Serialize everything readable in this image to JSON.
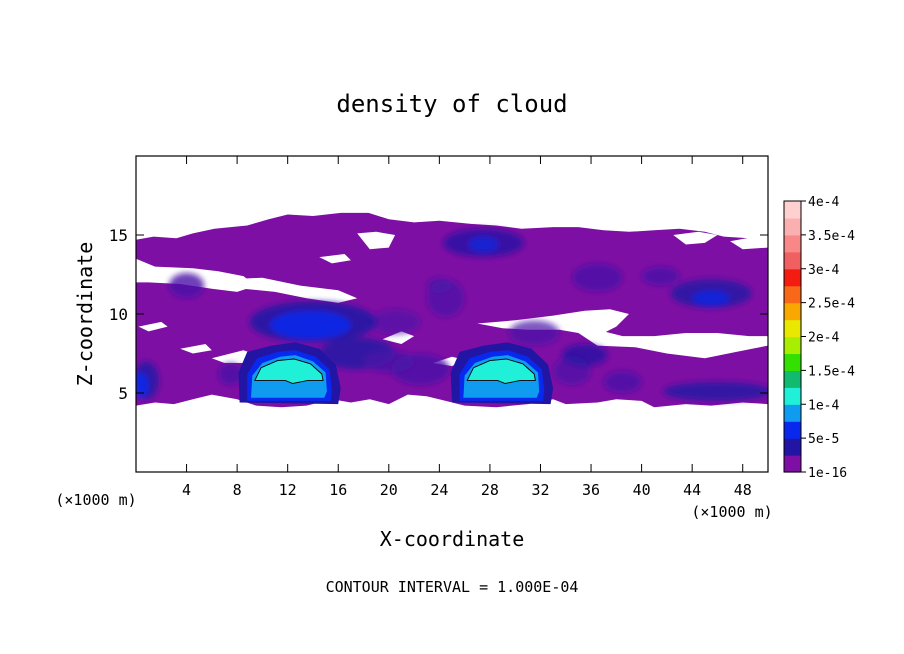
{
  "chart_data": {
    "type": "heatmap",
    "title": "density of cloud",
    "xlabel": "X-coordinate",
    "ylabel": "Z-coordinate",
    "x_unit_left": "(×1000 m)",
    "x_unit_right": "(×1000 m)",
    "xlim": [
      0,
      50
    ],
    "ylim": [
      0,
      20
    ],
    "x_ticks": [
      4,
      8,
      12,
      16,
      20,
      24,
      28,
      32,
      36,
      40,
      44,
      48
    ],
    "y_ticks": [
      5,
      10,
      15
    ],
    "footer": "CONTOUR INTERVAL = 1.000E-04",
    "grid": false,
    "colorbar": {
      "labels": [
        "1e-16",
        "5e-5",
        "1e-4",
        "1.5e-4",
        "2e-4",
        "2.5e-4",
        "3e-4",
        "3.5e-4",
        "4e-4"
      ],
      "colors": [
        "#7e0fa4",
        "#2315a4",
        "#0828ee",
        "#0f9bf0",
        "#20f0d8",
        "#10bb70",
        "#34e000",
        "#a8ee00",
        "#e8e800",
        "#f8a800",
        "#f86818",
        "#f41c10",
        "#f06060",
        "#f88888",
        "#fab0b0",
        "#ffd0d0"
      ]
    },
    "background_color": "#7e0fa4",
    "cloud_regions": [
      {
        "name": "main-layer",
        "x": [
          0,
          50
        ],
        "z": [
          4.3,
          16.3
        ],
        "value": "1e-16"
      },
      {
        "name": "core-left",
        "x_center": 12.2,
        "z_center": 6.3,
        "value": "1.5e-4"
      },
      {
        "name": "core-right",
        "x_center": 29.0,
        "z_center": 6.2,
        "value": "1.5e-4"
      }
    ]
  }
}
